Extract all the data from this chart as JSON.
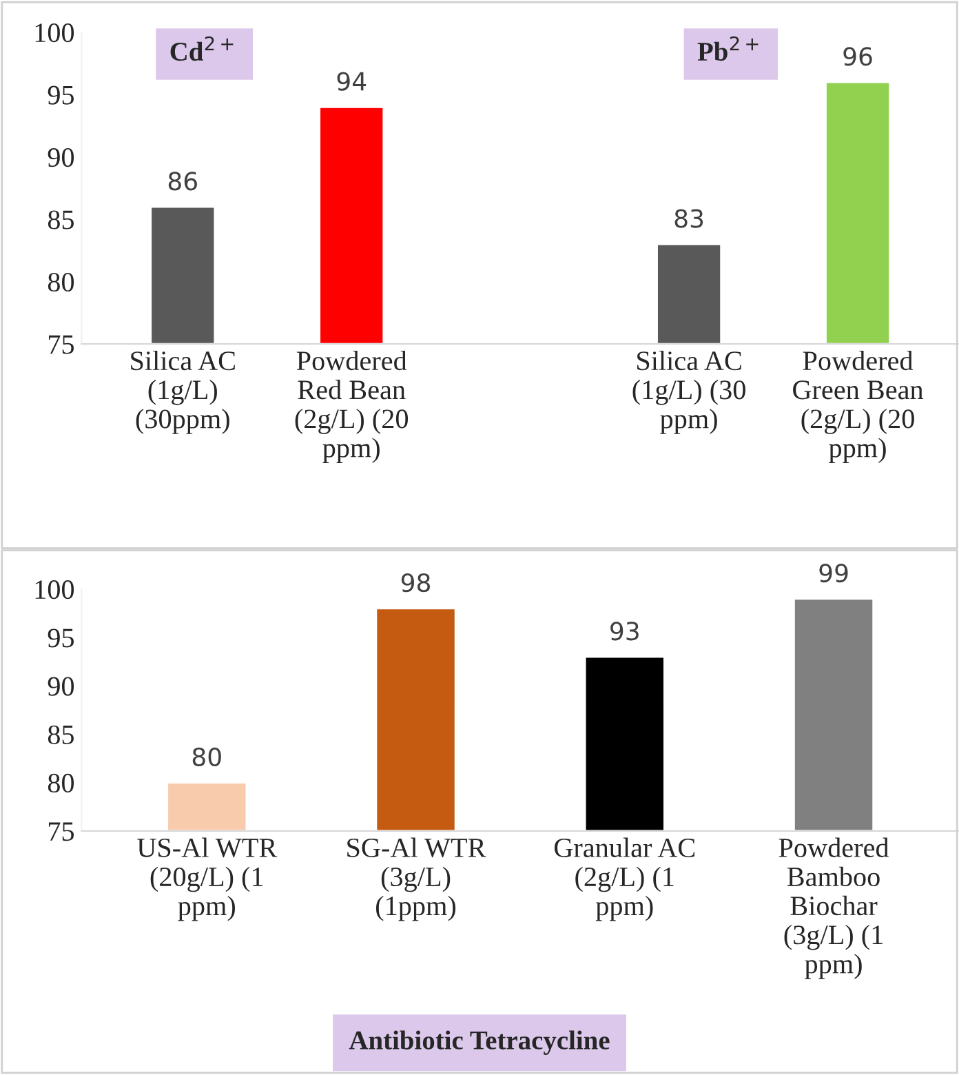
{
  "chart_data": [
    {
      "type": "bar",
      "categories": [
        "Silica AC\n(1g/L)\n(30ppm)",
        "Powdered\nRed Bean\n(2g/L) (20\nppm)",
        null,
        "Silica AC\n(1g/L) (30\nppm)",
        "Powdered\nGreen Bean\n(2g/L) (20\nppm)"
      ],
      "values": [
        86,
        94,
        null,
        83,
        96
      ],
      "colors": [
        "#595959",
        "#ff0000",
        "#595959",
        "#595959",
        "#92d050"
      ],
      "ylim": [
        75,
        100
      ],
      "yticks": [
        75,
        80,
        85,
        90,
        95,
        100
      ],
      "grid": false,
      "data_labels": true,
      "annotations": [
        "Cd$^{2+}$",
        "Pb$^{2+}$"
      ]
    },
    {
      "type": "bar",
      "categories": [
        "US-Al WTR\n(20g/L) (1\nppm)",
        "SG-Al WTR\n(3g/L)\n(1ppm)",
        "Granular AC\n(2g/L) (1\nppm)",
        "Powdered\nBamboo\nBiochar\n(3g/L) (1\nppm)"
      ],
      "values": [
        80,
        98,
        93,
        99
      ],
      "colors": [
        "#f8cbad",
        "#c55a11",
        "#000000",
        "#808080"
      ],
      "ylim": [
        75,
        100
      ],
      "yticks": [
        75,
        80,
        85,
        90,
        95,
        100
      ],
      "grid": false,
      "data_labels": true,
      "annotations": [
        "Antibiotic Tetracycline"
      ]
    }
  ]
}
